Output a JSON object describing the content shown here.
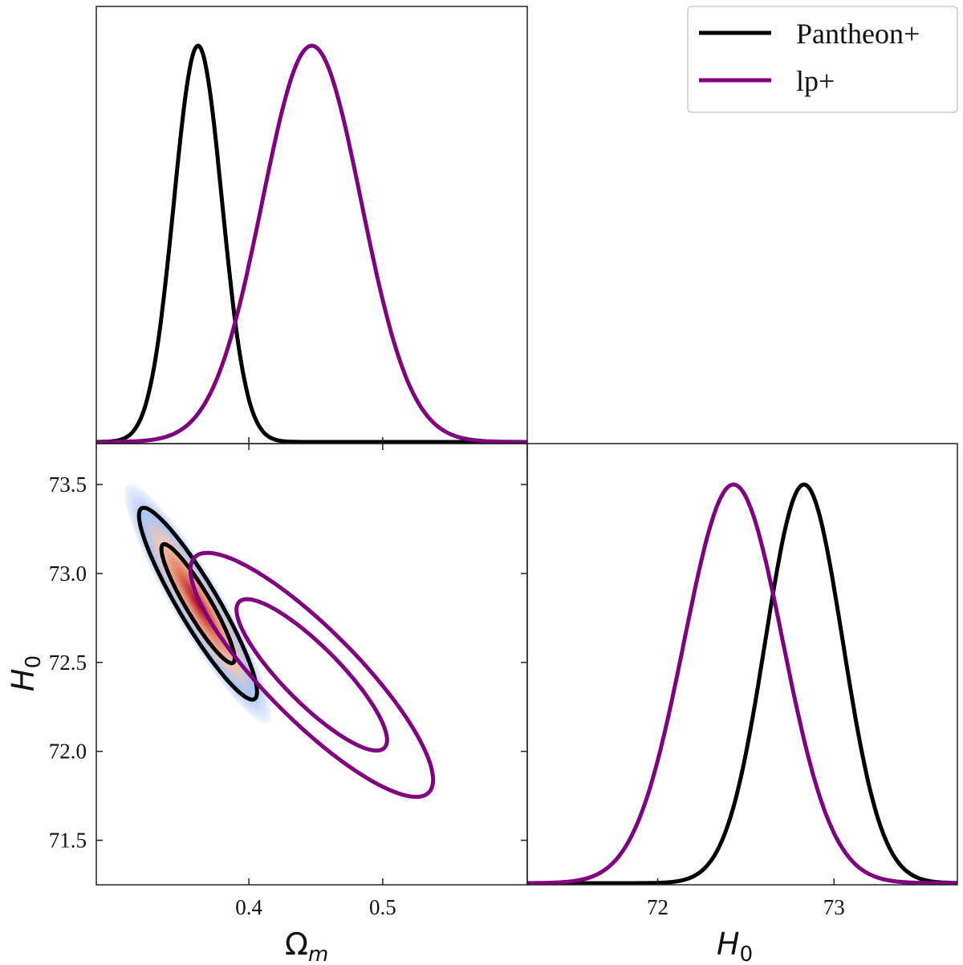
{
  "chart_data": {
    "type": "corner",
    "parameters": [
      {
        "key": "Om",
        "label": "Ω",
        "subscript": "m",
        "range": [
          0.286,
          0.608
        ],
        "ticks": [
          0.4,
          0.5
        ],
        "tick_labels": [
          "0.4",
          "0.5"
        ]
      },
      {
        "key": "H0",
        "label": "H",
        "subscript": "0",
        "range": [
          71.25,
          73.73
        ],
        "ticks": [
          71.5,
          72.0,
          72.5,
          73.0,
          73.5
        ],
        "tick_labels": [
          "71.5",
          "72.0",
          "72.5",
          "73.0",
          "73.5"
        ]
      }
    ],
    "h0_marginal_range": [
      71.26,
      73.7
    ],
    "h0_marginal_ticks": [
      72,
      73
    ],
    "h0_marginal_tick_labels": [
      "72",
      "73"
    ],
    "series": [
      {
        "name": "Pantheon+",
        "color": "#000000",
        "mean": {
          "Om": 0.362,
          "H0": 72.83
        },
        "sigma": {
          "Om": 0.018,
          "H0": 0.22
        },
        "correlation": -0.92,
        "filled_density": true,
        "contour_levels": [
          "68%",
          "95%"
        ]
      },
      {
        "name": "lp+",
        "color": "#800080",
        "mean": {
          "Om": 0.447,
          "H0": 72.43
        },
        "sigma": {
          "Om": 0.037,
          "H0": 0.28
        },
        "correlation": -0.86,
        "filled_density": false,
        "contour_levels": [
          "68%",
          "95%"
        ]
      }
    ],
    "density_colormap": [
      "#eef2fb",
      "#a9c6f7",
      "#f4c6b0",
      "#e07a5f",
      "#b5102a"
    ],
    "legend_position": "top-right",
    "grid": false
  }
}
